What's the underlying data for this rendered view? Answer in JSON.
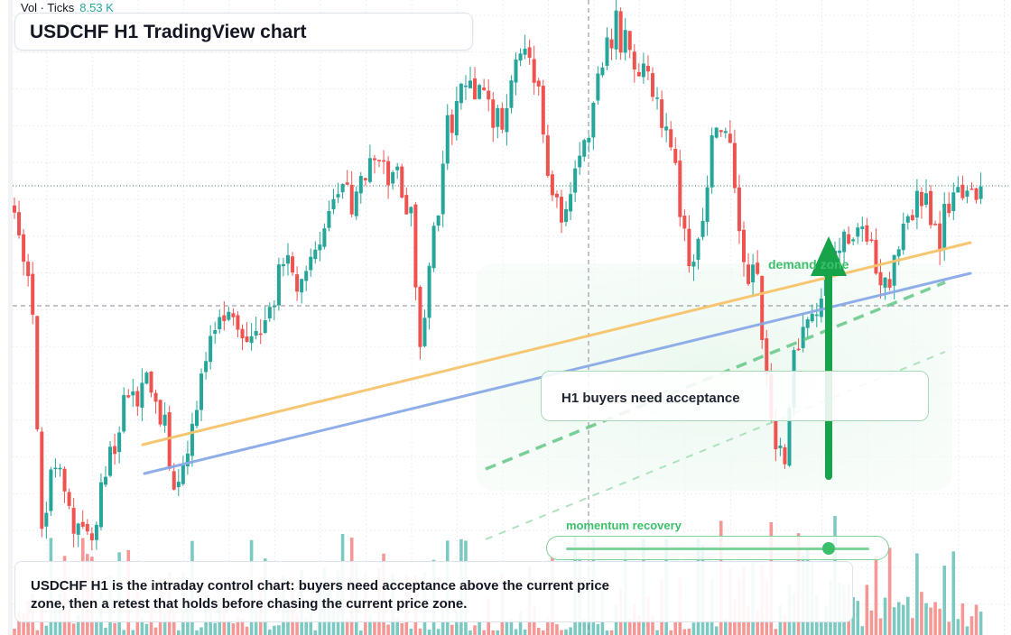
{
  "volume_legend": {
    "label": "Vol · Ticks",
    "value": "8.53 K"
  },
  "title": "USDCHF H1 TradingView chart",
  "callout": "H1 buyers need acceptance",
  "zone_label": "demand zone",
  "momentum": {
    "label": "momentum recovery",
    "level": 0.865
  },
  "summary": "USDCHF H1 is the intraday control chart: buyers need acceptance above the current price zone, then a retest that holds before chasing the current price zone.",
  "colors": {
    "bull": "#26a69a",
    "bear": "#ef5350",
    "accent": "#3cbf6a",
    "resistance_line": "#f7c46c",
    "trend_line": "#8aaae8",
    "arrow": "#16a34a"
  },
  "chart_data": {
    "type": "candlestick",
    "symbol": "USDCHF",
    "timeframe": "H1",
    "price_scale": "unlabeled",
    "seed": 20240607,
    "bars": 180,
    "key_levels": [
      "reference dotted level",
      "crosshair dashed level"
    ],
    "overlays": [
      "orange trend line",
      "blue trend line",
      "green dashed channel",
      "demand zone",
      "bullish arrow"
    ],
    "grid": true
  }
}
